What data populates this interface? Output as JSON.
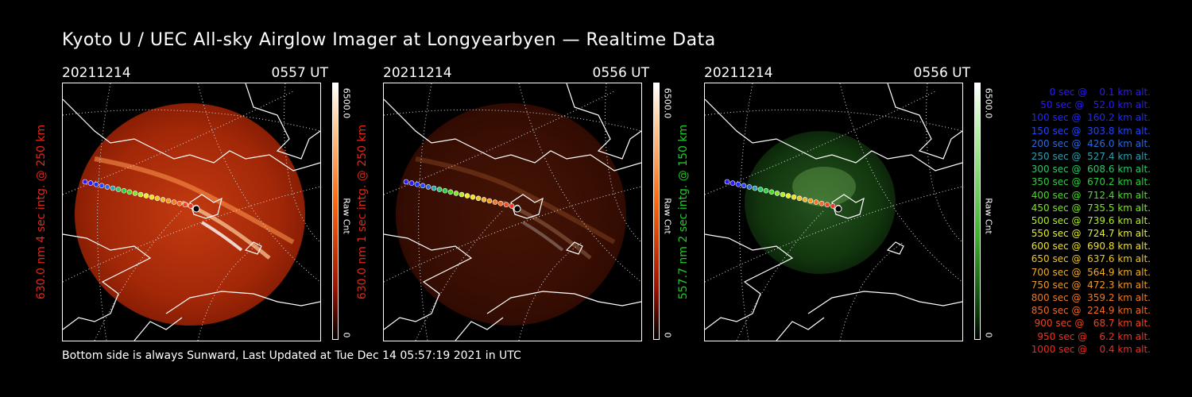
{
  "title": "Kyoto U / UEC All-sky Airglow Imager at Longyearbyen — Realtime Data",
  "footer": "Bottom side is always Sunward, Last Updated at Tue Dec 14 05:57:19 2021 in UTC",
  "panels": [
    {
      "date": "20211214",
      "time": "0557 UT",
      "label": "630.0 nm 4 sec intg. @ 250 km",
      "label_color": "#e0281a",
      "cbar_max": "6500.0",
      "cbar_min": "0",
      "cbar_label": "Raw Cnt",
      "colormap": "red",
      "brightness": 1.0
    },
    {
      "date": "20211214",
      "time": "0556 UT",
      "label": "630.0 nm 1 sec intg. @ 250 km",
      "label_color": "#e0281a",
      "cbar_max": "6500.0",
      "cbar_min": "0",
      "cbar_label": "Raw Cnt",
      "colormap": "red",
      "brightness": 0.35
    },
    {
      "date": "20211214",
      "time": "0556 UT",
      "label": "557.7 nm 2 sec intg. @ 150 km",
      "label_color": "#22c82a",
      "cbar_max": "6500.0",
      "cbar_min": "0",
      "cbar_label": "Raw Cnt",
      "colormap": "green",
      "brightness": 0.6
    }
  ],
  "legend": [
    {
      "text": "   0 sec @    0.1 km alt.",
      "color": "#2a1aff"
    },
    {
      "text": "  50 sec @   52.0 km alt.",
      "color": "#2a1aff"
    },
    {
      "text": " 100 sec @  160.2 km alt.",
      "color": "#1e2aff"
    },
    {
      "text": " 150 sec @  303.8 km alt.",
      "color": "#2244ff"
    },
    {
      "text": " 200 sec @  426.0 km alt.",
      "color": "#2a6ae0"
    },
    {
      "text": " 250 sec @  527.4 km alt.",
      "color": "#2aa0b0"
    },
    {
      "text": " 300 sec @  608.6 km alt.",
      "color": "#2ac86a"
    },
    {
      "text": " 350 sec @  670.2 km alt.",
      "color": "#2ad23a"
    },
    {
      "text": " 400 sec @  712.4 km alt.",
      "color": "#44e022"
    },
    {
      "text": " 450 sec @  735.5 km alt.",
      "color": "#7ae822"
    },
    {
      "text": " 500 sec @  739.6 km alt.",
      "color": "#b0f022"
    },
    {
      "text": " 550 sec @  724.7 km alt.",
      "color": "#e8f022"
    },
    {
      "text": " 600 sec @  690.8 km alt.",
      "color": "#f0e022"
    },
    {
      "text": " 650 sec @  637.6 km alt.",
      "color": "#f0c822"
    },
    {
      "text": " 700 sec @  564.9 km alt.",
      "color": "#f0b022"
    },
    {
      "text": " 750 sec @  472.3 km alt.",
      "color": "#f09822"
    },
    {
      "text": " 800 sec @  359.2 km alt.",
      "color": "#f07a22"
    },
    {
      "text": " 850 sec @  224.9 km alt.",
      "color": "#f06a22"
    },
    {
      "text": " 900 sec @   68.7 km alt.",
      "color": "#f04422"
    },
    {
      "text": " 950 sec @    6.2 km alt.",
      "color": "#f03422"
    },
    {
      "text": "1000 sec @    0.4 km alt.",
      "color": "#f02a22"
    }
  ]
}
